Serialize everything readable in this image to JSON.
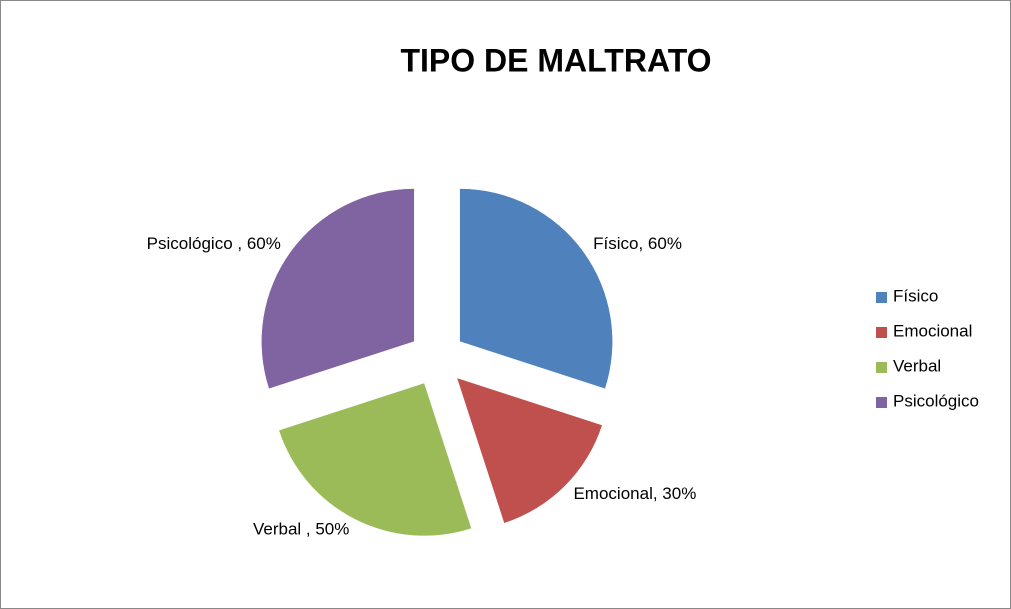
{
  "chart_data": {
    "type": "pie",
    "title": "TIPO DE MALTRATO",
    "categories": [
      "Físico",
      "Emocional",
      "Verbal",
      "Psicológico"
    ],
    "values": [
      60,
      30,
      50,
      60
    ],
    "value_labels": [
      "Físico, 60%",
      "Emocional, 30%",
      "Verbal , 50%",
      "Psicológico , 60%"
    ],
    "colors": [
      "#4f81bd",
      "#c0504d",
      "#9bbb59",
      "#8064a2"
    ],
    "exploded": true,
    "legend": "right"
  }
}
